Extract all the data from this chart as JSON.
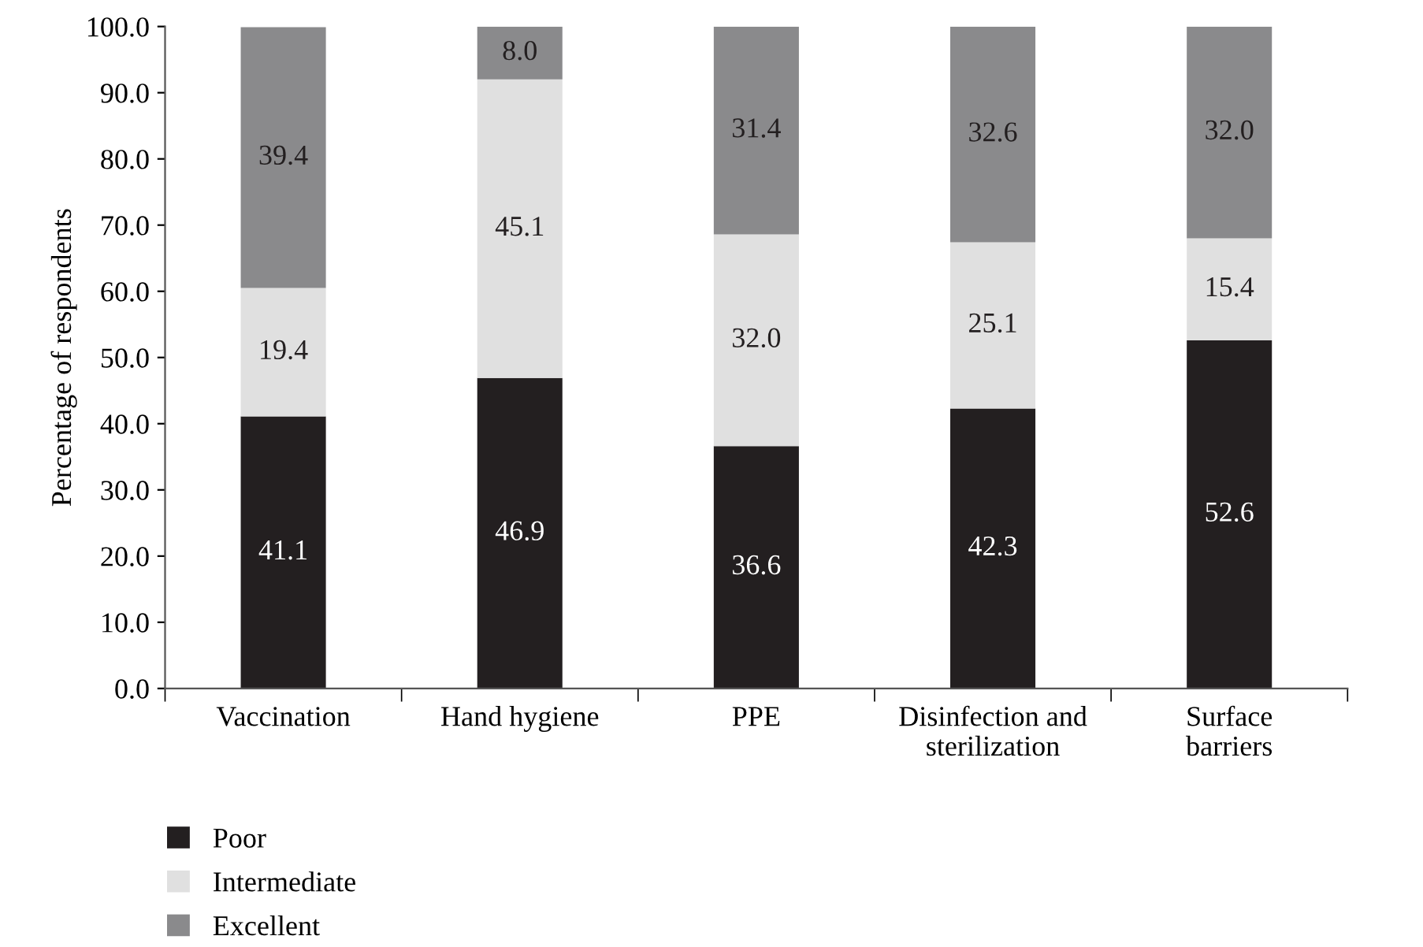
{
  "chart_data": {
    "type": "bar",
    "stacked": true,
    "ylabel": "Percentage of respondents",
    "categories": [
      "Vaccination",
      "Hand hygiene",
      "PPE",
      "Disinfection and\nsterilization",
      "Surface\nbarriers"
    ],
    "series": [
      {
        "name": "Poor",
        "color": "#231f20",
        "values": [
          41.1,
          46.9,
          36.6,
          42.3,
          52.6
        ],
        "value_labels": [
          "41.1",
          "46.9",
          "36.6",
          "42.3",
          "52.6"
        ]
      },
      {
        "name": "Intermediate",
        "color": "#e0e0e0",
        "values": [
          19.4,
          45.1,
          32,
          25.1,
          15.4
        ],
        "value_labels": [
          "19.4",
          "45.1",
          "32.0",
          "25.1",
          "15.4"
        ]
      },
      {
        "name": "Excellent",
        "color": "#8a8a8c",
        "values": [
          39.4,
          8,
          31.4,
          32.6,
          32
        ],
        "value_labels": [
          "39.4",
          "8.0",
          "31.4",
          "32.6",
          "32.0"
        ]
      }
    ],
    "ylim": [
      0,
      100
    ],
    "yticks": [
      {
        "value": 0,
        "label": "0.0"
      },
      {
        "value": 10,
        "label": "10.0"
      },
      {
        "value": 20,
        "label": "20.0"
      },
      {
        "value": 30,
        "label": "30.0"
      },
      {
        "value": 40,
        "label": "40.0"
      },
      {
        "value": 50,
        "label": "50.0"
      },
      {
        "value": 60,
        "label": "60.0"
      },
      {
        "value": 70,
        "label": "70.0"
      },
      {
        "value": 80,
        "label": "80.0"
      },
      {
        "value": 90,
        "label": "90.0"
      },
      {
        "value": 100,
        "label": "100.0"
      }
    ],
    "grid": false,
    "legend": "bottom left"
  }
}
